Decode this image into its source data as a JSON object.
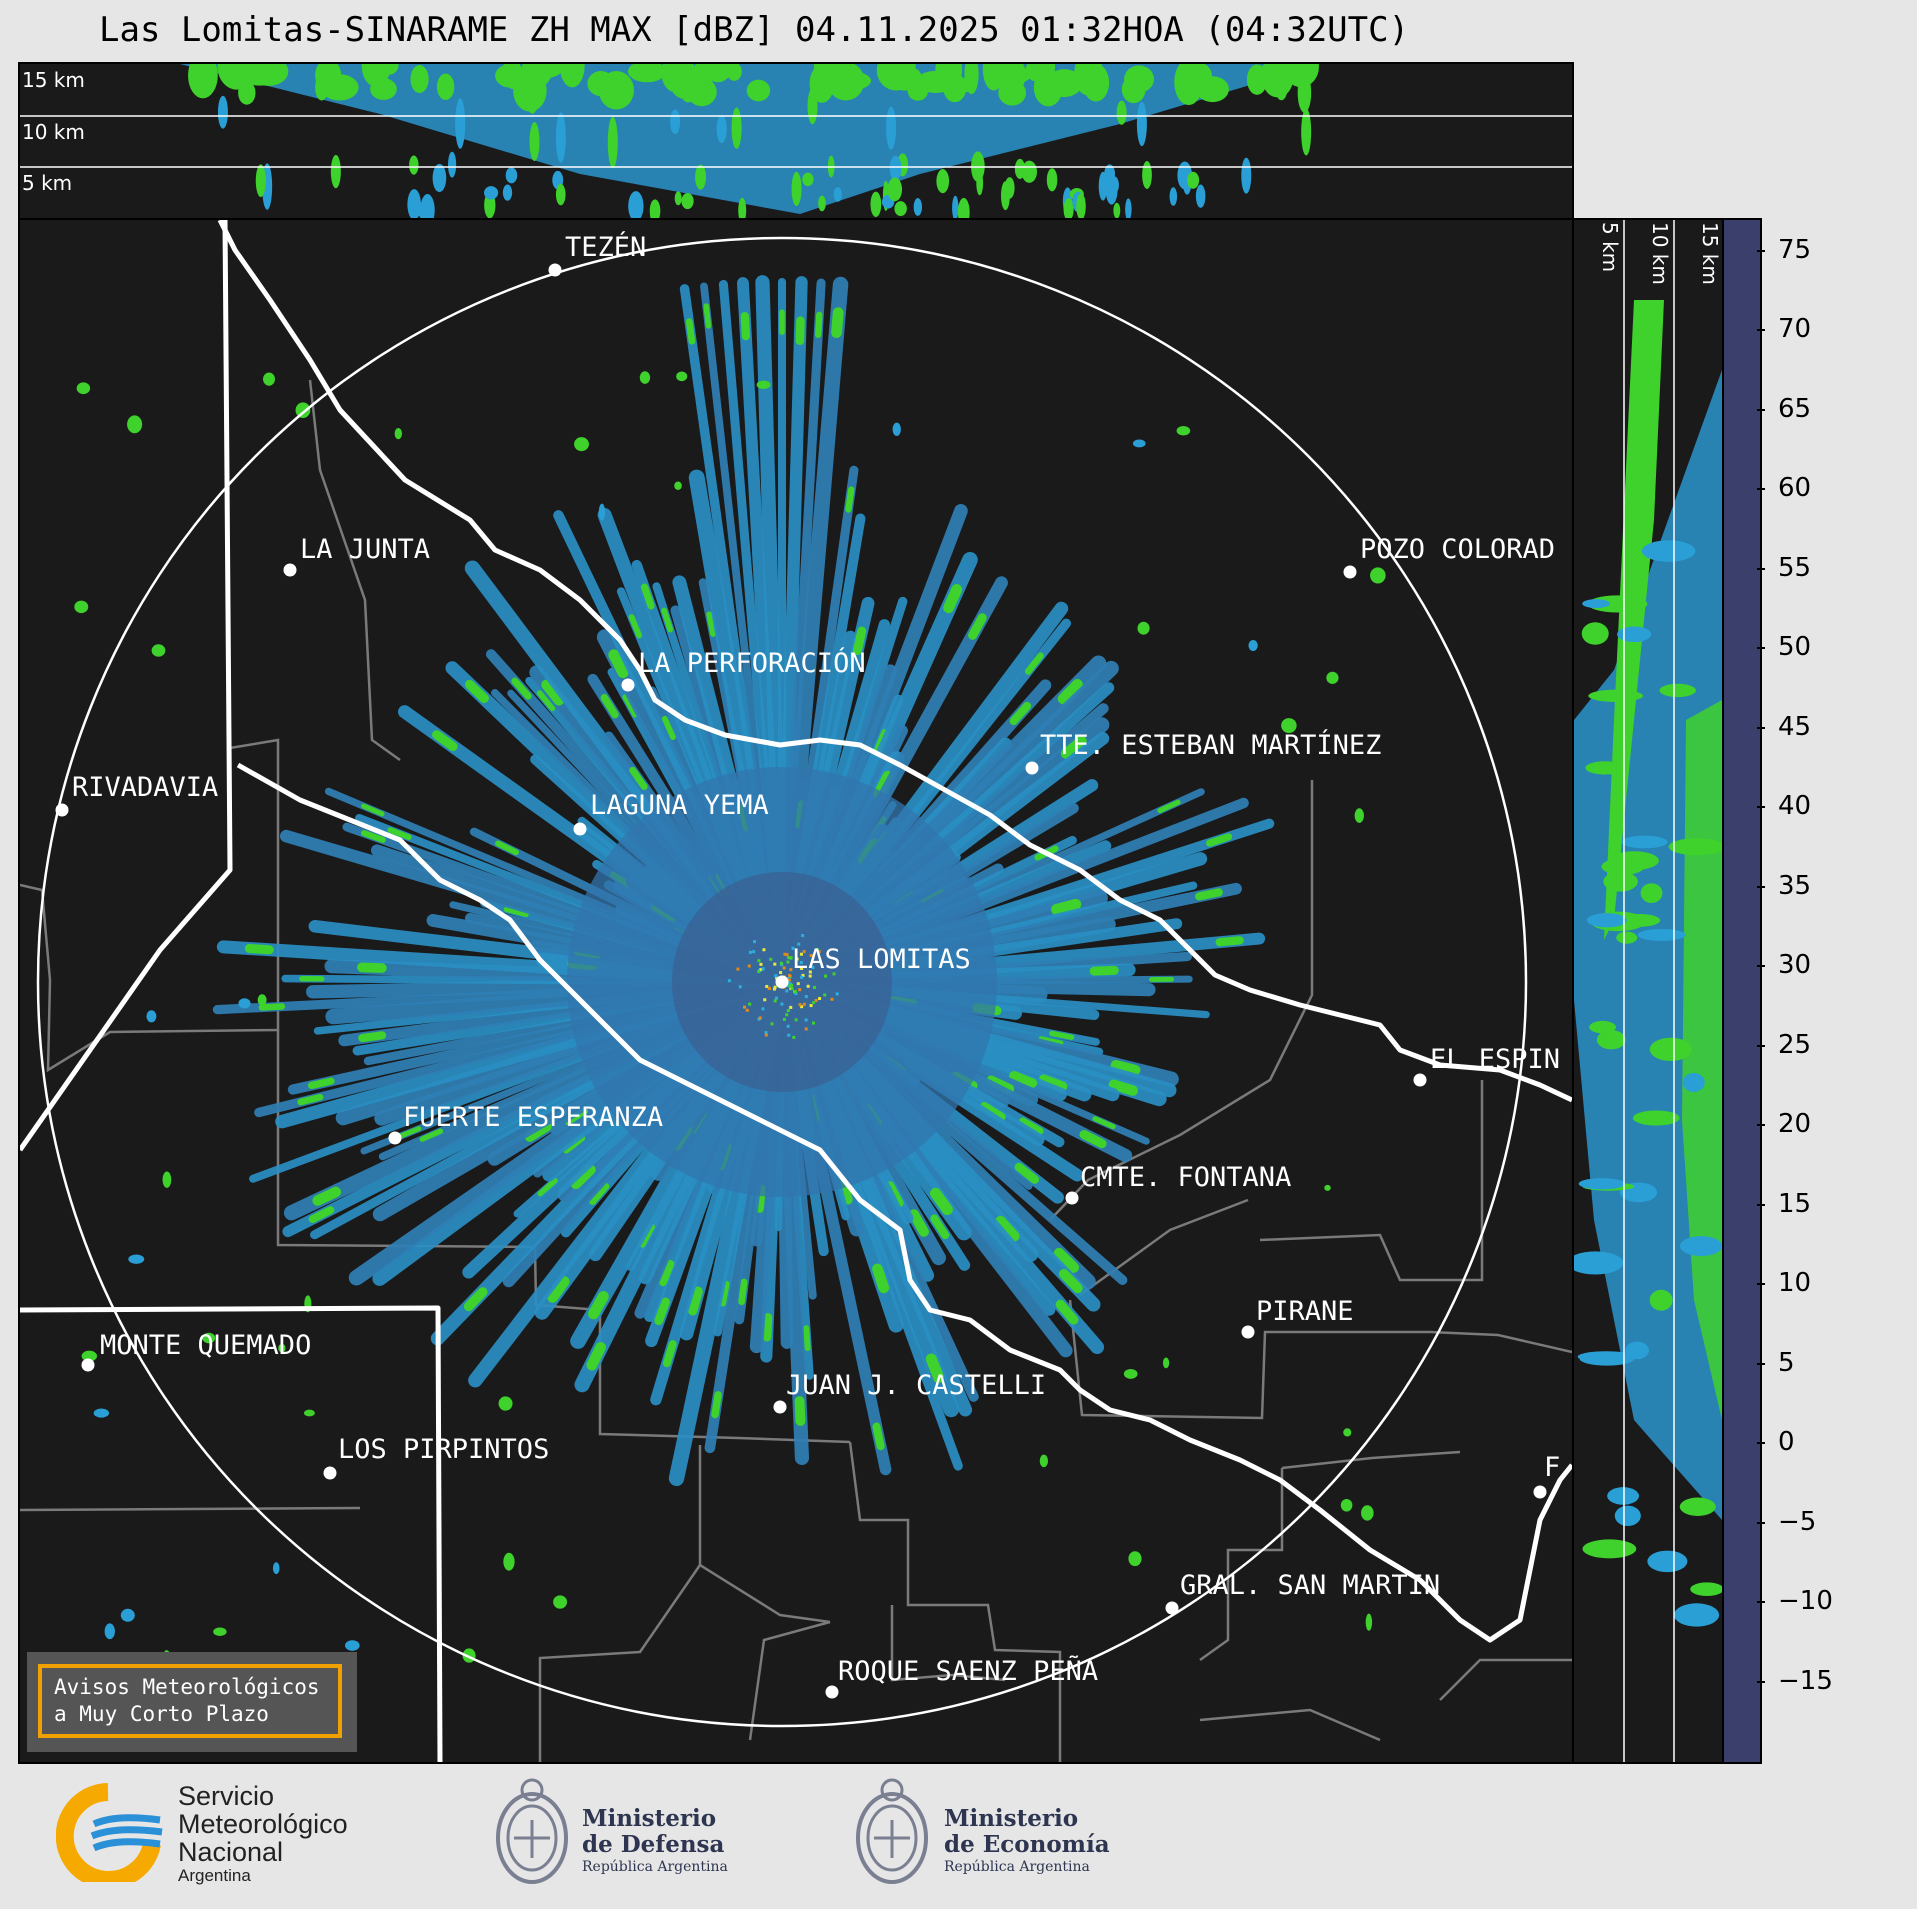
{
  "title": "Las Lomitas-SINARAME ZH MAX [dBZ] 04.11.2025 01:32HOA (04:32UTC)",
  "top_panel": {
    "km_labels": [
      "15 km",
      "10 km",
      "5 km"
    ]
  },
  "side_panel": {
    "km_labels": [
      "5 km",
      "10 km",
      "15 km"
    ]
  },
  "colorbar": {
    "ticks": [
      "75",
      "70",
      "65",
      "60",
      "55",
      "50",
      "45",
      "40",
      "35",
      "30",
      "25",
      "20",
      "15",
      "10",
      "5",
      "0",
      "−5",
      "−10",
      "−15"
    ],
    "range_min": -20,
    "range_max": 77,
    "stops": [
      {
        "from": -20,
        "to": -15,
        "color": "#3a3f6b"
      },
      {
        "from": -15,
        "to": -10,
        "color": "#3d4677"
      },
      {
        "from": -10,
        "to": -5,
        "color": "#3c5284"
      },
      {
        "from": -5,
        "to": 0,
        "color": "#3a5f92"
      },
      {
        "from": 0,
        "to": 5,
        "color": "#376c9e"
      },
      {
        "from": 5,
        "to": 10,
        "color": "#327dad"
      },
      {
        "from": 10,
        "to": 15,
        "color": "#2c8fc0"
      },
      {
        "from": 15,
        "to": 18,
        "color": "#25a8da"
      },
      {
        "from": 18,
        "to": 22,
        "color": "#44e12e"
      },
      {
        "from": 22,
        "to": 26,
        "color": "#37b824"
      },
      {
        "from": 26,
        "to": 30,
        "color": "#247a1c"
      },
      {
        "from": 30,
        "to": 32,
        "color": "#e9e93a"
      },
      {
        "from": 32,
        "to": 36,
        "color": "#d4d03a"
      },
      {
        "from": 36,
        "to": 40,
        "color": "#c5a52a"
      },
      {
        "from": 40,
        "to": 42,
        "color": "#e28a18"
      },
      {
        "from": 42,
        "to": 46,
        "color": "#e01a3a"
      },
      {
        "from": 46,
        "to": 50,
        "color": "#a00018"
      },
      {
        "from": 50,
        "to": 53,
        "color": "#c8006e"
      },
      {
        "from": 53,
        "to": 56,
        "color": "#e800d8"
      },
      {
        "from": 56,
        "to": 59,
        "color": "#8a0090"
      },
      {
        "from": 59,
        "to": 61,
        "color": "#ffffff"
      },
      {
        "from": 61,
        "to": 77,
        "color": "#a8ecd0"
      }
    ]
  },
  "cities": [
    {
      "name": "TEZÉN"
    },
    {
      "name": "LA JUNTA"
    },
    {
      "name": "POZO COLORAD"
    },
    {
      "name": "LA PERFORACIÓN"
    },
    {
      "name": "TTE. ESTEBAN MARTÍNEZ"
    },
    {
      "name": "RIVADAVIA"
    },
    {
      "name": "LAGUNA YEMA"
    },
    {
      "name": "LAS LOMITAS"
    },
    {
      "name": "EL ESPIN"
    },
    {
      "name": "FUERTE ESPERANZA"
    },
    {
      "name": "CMTE. FONTANA"
    },
    {
      "name": "PIRANE"
    },
    {
      "name": "MONTE QUEMADO"
    },
    {
      "name": "JUAN J. CASTELLI"
    },
    {
      "name": "LOS PIRPINTOS"
    },
    {
      "name": "GRAL. SAN MARTIN"
    },
    {
      "name": "ROQUE SAENZ PEÑA"
    },
    {
      "name": "F"
    }
  ],
  "warning": {
    "line1": "Avisos Meteorológicos",
    "line2": "a Muy Corto Plazo"
  },
  "logos": {
    "smn": {
      "line1": "Servicio",
      "line2": "Meteorológico",
      "line3": "Nacional",
      "line4": "Argentina"
    },
    "defensa": {
      "line1": "Ministerio",
      "line2": "de Defensa",
      "line3": "República Argentina"
    },
    "economia": {
      "line1": "Ministerio",
      "line2": "de Economía",
      "line3": "República Argentina"
    }
  }
}
